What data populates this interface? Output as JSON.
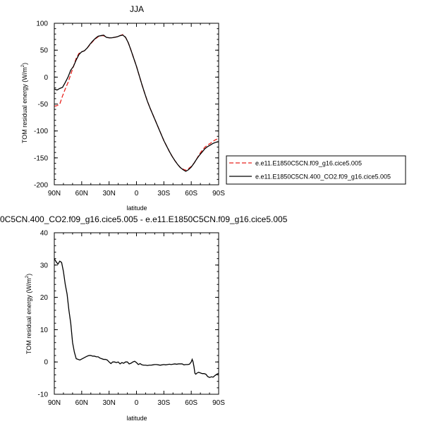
{
  "chart_data": [
    {
      "type": "line",
      "title": "JJA",
      "xlabel": "latitude",
      "ylabel": "TOM residual energy (W/m",
      "ylabel_sup": "2",
      "ylabel_close": ")",
      "xlim": [
        90,
        -90
      ],
      "ylim": [
        -200,
        100
      ],
      "xticks": [
        90,
        60,
        30,
        0,
        -30,
        -60,
        -90
      ],
      "xtick_labels": [
        "90N",
        "60N",
        "30N",
        "0",
        "30S",
        "60S",
        "90S"
      ],
      "yticks": [
        100,
        50,
        0,
        -50,
        -100,
        -150,
        -200
      ],
      "ytick_labels": [
        "100",
        "50",
        "0",
        "-50",
        "-100",
        "-150",
        "-200"
      ],
      "legend_position": "right",
      "series": [
        {
          "name": "e.e11.E1850C5CN.f09_g16.cice5.005",
          "color": "#e8231e",
          "dash": "dashed",
          "x": [
            90,
            87,
            84,
            81,
            78,
            75,
            72,
            69,
            66,
            63,
            60,
            57,
            54,
            51,
            48,
            45,
            42,
            39,
            36,
            33,
            30,
            27,
            24,
            21,
            18,
            15,
            12,
            9,
            6,
            3,
            0,
            -3,
            -6,
            -9,
            -12,
            -15,
            -18,
            -21,
            -24,
            -27,
            -30,
            -33,
            -36,
            -39,
            -42,
            -45,
            -48,
            -51,
            -54,
            -57,
            -60,
            -63,
            -66,
            -69,
            -72,
            -75,
            -78,
            -81,
            -84,
            -87,
            -90
          ],
          "y": [
            -54,
            -53,
            -50,
            -35,
            -22,
            -10,
            5,
            20,
            35,
            44,
            47,
            49,
            54,
            60,
            66,
            71,
            75,
            77,
            77,
            74,
            73,
            73,
            74,
            75,
            77,
            79,
            74,
            64,
            50,
            35,
            20,
            3,
            -14,
            -30,
            -45,
            -58,
            -70,
            -82,
            -94,
            -106,
            -118,
            -128,
            -138,
            -147,
            -155,
            -162,
            -168,
            -171,
            -173,
            -170,
            -166,
            -160,
            -152,
            -143,
            -136,
            -130,
            -126,
            -123,
            -119,
            -116,
            -114
          ]
        },
        {
          "name": "e.e11.E1850C5CN.400_CO2.f09_g16.cice5.005",
          "color": "#000000",
          "dash": "solid",
          "x": [
            90,
            87,
            84,
            81,
            78,
            75,
            72,
            69,
            66,
            63,
            60,
            57,
            54,
            51,
            48,
            45,
            42,
            39,
            36,
            33,
            30,
            27,
            24,
            21,
            18,
            15,
            12,
            9,
            6,
            3,
            0,
            -3,
            -6,
            -9,
            -12,
            -15,
            -18,
            -21,
            -24,
            -27,
            -30,
            -33,
            -36,
            -39,
            -42,
            -45,
            -48,
            -51,
            -54,
            -57,
            -60,
            -63,
            -66,
            -69,
            -72,
            -75,
            -78,
            -81,
            -84,
            -87,
            -90
          ],
          "y": [
            -22,
            -24,
            -21,
            -19,
            -10,
            0,
            13,
            20,
            32,
            42,
            47,
            49,
            54,
            61,
            67,
            72,
            76,
            77,
            78,
            74,
            73,
            73,
            74,
            75,
            77,
            78,
            74,
            64,
            50,
            35,
            20,
            3,
            -14,
            -30,
            -45,
            -58,
            -70,
            -82,
            -94,
            -106,
            -118,
            -128,
            -138,
            -147,
            -155,
            -162,
            -168,
            -172,
            -175,
            -172,
            -167,
            -160,
            -152,
            -145,
            -139,
            -133,
            -129,
            -126,
            -123,
            -121,
            -120
          ]
        }
      ]
    },
    {
      "type": "line",
      "title": "0C5CN.400_CO2.f09_g16.cice5.005 - e.e11.E1850C5CN.f09_g16.cice5.005",
      "xlabel": "latitude",
      "ylabel": "TOM residual energy (W/m",
      "ylabel_sup": "2",
      "ylabel_close": ")",
      "xlim": [
        90,
        -90
      ],
      "ylim": [
        -10,
        40
      ],
      "xticks": [
        90,
        60,
        30,
        0,
        -30,
        -60,
        -90
      ],
      "xtick_labels": [
        "90N",
        "60N",
        "30N",
        "0",
        "30S",
        "60S",
        "90S"
      ],
      "yticks": [
        40,
        30,
        20,
        10,
        0,
        -10
      ],
      "ytick_labels": [
        "40",
        "30",
        "20",
        "10",
        "0",
        "-10"
      ],
      "series": [
        {
          "color": "#000000",
          "dash": "solid",
          "x": [
            90,
            88,
            86,
            84,
            82,
            80,
            78,
            76,
            74,
            72,
            70,
            68,
            66,
            64,
            62,
            60,
            58,
            56,
            54,
            52,
            50,
            48,
            46,
            44,
            42,
            40,
            38,
            36,
            34,
            32,
            30,
            28,
            26,
            24,
            22,
            20,
            18,
            16,
            14,
            12,
            10,
            8,
            6,
            4,
            2,
            0,
            -2,
            -4,
            -6,
            -8,
            -10,
            -12,
            -14,
            -16,
            -18,
            -20,
            -22,
            -24,
            -26,
            -28,
            -30,
            -32,
            -34,
            -36,
            -38,
            -40,
            -42,
            -44,
            -46,
            -48,
            -50,
            -52,
            -54,
            -56,
            -58,
            -60,
            -61,
            -62,
            -63,
            -64,
            -65,
            -66,
            -68,
            -70,
            -72,
            -74,
            -76,
            -78,
            -80,
            -82,
            -84,
            -86,
            -88,
            -90
          ],
          "y": [
            32,
            31,
            30.3,
            31.2,
            30.8,
            28,
            24,
            21,
            16,
            12,
            6,
            3,
            1,
            0.8,
            0.6,
            0.9,
            1.2,
            1.5,
            1.8,
            2,
            2,
            1.8,
            1.8,
            1.6,
            1.6,
            1.2,
            1,
            0.8,
            0.8,
            0.6,
            0,
            -0.5,
            0,
            0,
            -0.2,
            0,
            -0.6,
            -0.2,
            -0.4,
            0,
            0,
            -0.6,
            -0.4,
            0,
            0.2,
            -0.2,
            -0.8,
            -0.5,
            -0.9,
            -1,
            -1,
            -1.1,
            -1,
            -1,
            -0.9,
            -0.8,
            -0.8,
            -0.9,
            -1,
            -0.9,
            -0.8,
            -0.9,
            -0.8,
            -0.7,
            -0.8,
            -0.7,
            -0.6,
            -0.7,
            -0.6,
            -0.6,
            -0.6,
            -0.9,
            -0.8,
            -0.8,
            -0.7,
            0,
            0.8,
            0,
            -1.5,
            -3.5,
            -3.8,
            -3.5,
            -3.2,
            -3.4,
            -3.6,
            -3.6,
            -3.8,
            -4.5,
            -4.8,
            -4.6,
            -4.7,
            -4.2,
            -3.8,
            -3.5
          ]
        }
      ]
    }
  ]
}
